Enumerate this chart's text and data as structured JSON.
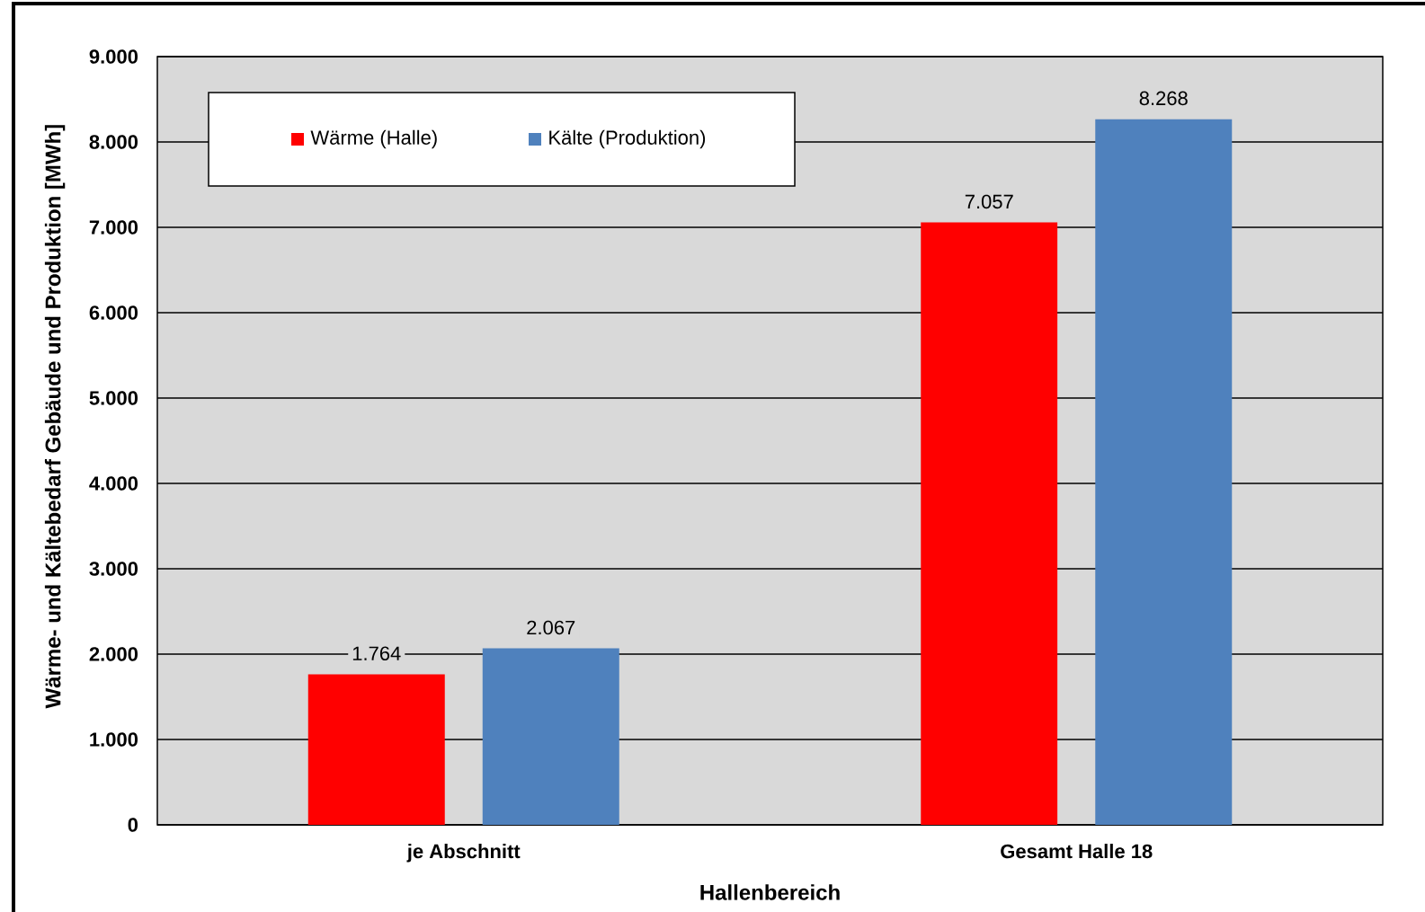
{
  "chart_data": {
    "type": "bar",
    "xlabel": "Hallenbereich",
    "ylabel": "Wärme- und Kältebedarf Gebäude und Produktion [MWh]",
    "categories": [
      "je Abschnitt",
      "Gesamt Halle 18"
    ],
    "series": [
      {
        "name": "Wärme (Halle)",
        "color": "#ff0000",
        "values": [
          1764,
          7057
        ],
        "value_labels": [
          "1.764",
          "7.057"
        ]
      },
      {
        "name": "Kälte (Produktion)",
        "color": "#4f81bd",
        "values": [
          2067,
          8268
        ],
        "value_labels": [
          "2.067",
          "8.268"
        ]
      }
    ],
    "ylim": [
      0,
      9000
    ],
    "yticks": [
      0,
      {
        "value": 1000,
        "label": "1.000"
      },
      {
        "value": 2000,
        "label": "2.000"
      },
      {
        "value": 3000,
        "label": "3.000"
      },
      {
        "value": 4000,
        "label": "4.000"
      },
      {
        "value": 5000,
        "label": "5.000"
      },
      {
        "value": 6000,
        "label": "6.000"
      },
      {
        "value": 7000,
        "label": "7.000"
      },
      {
        "value": 8000,
        "label": "8.000"
      },
      {
        "value": 9000,
        "label": "9.000"
      }
    ],
    "grid": "y",
    "legend": "top left"
  }
}
